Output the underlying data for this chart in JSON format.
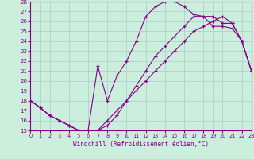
{
  "background_color": "#cceedd",
  "grid_color": "#aacccc",
  "line_color": "#880088",
  "xlabel": "Windchill (Refroidissement éolien,°C)",
  "xlim": [
    0,
    23
  ],
  "ylim": [
    15,
    28
  ],
  "xticks": [
    0,
    1,
    2,
    3,
    4,
    5,
    6,
    7,
    8,
    9,
    10,
    11,
    12,
    13,
    14,
    15,
    16,
    17,
    18,
    19,
    20,
    21,
    22,
    23
  ],
  "yticks": [
    15,
    16,
    17,
    18,
    19,
    20,
    21,
    22,
    23,
    24,
    25,
    26,
    27,
    28
  ],
  "curves": [
    {
      "x": [
        0,
        1,
        2,
        3,
        4,
        5,
        6,
        7,
        8,
        9,
        10,
        11,
        12,
        13,
        14,
        15,
        16,
        17,
        18,
        19,
        20,
        21,
        22,
        23
      ],
      "y": [
        18.0,
        17.3,
        16.5,
        16.0,
        15.5,
        15.0,
        15.0,
        21.5,
        18.0,
        20.5,
        22.0,
        24.0,
        26.5,
        27.5,
        28.0,
        28.0,
        27.5,
        26.7,
        26.5,
        26.5,
        25.8,
        25.8,
        24.0,
        21.0
      ]
    },
    {
      "x": [
        0,
        1,
        2,
        3,
        4,
        5,
        6,
        7,
        8,
        9,
        10,
        11,
        12,
        13,
        14,
        15,
        16,
        17,
        18,
        19,
        20,
        21,
        22,
        23
      ],
      "y": [
        18.0,
        17.3,
        16.5,
        16.0,
        15.5,
        15.0,
        15.0,
        15.0,
        15.5,
        16.5,
        18.0,
        19.5,
        21.0,
        22.5,
        23.5,
        24.5,
        25.5,
        26.5,
        26.5,
        25.5,
        25.5,
        25.3,
        24.0,
        21.0
      ]
    },
    {
      "x": [
        0,
        1,
        2,
        3,
        4,
        5,
        6,
        7,
        8,
        9,
        10,
        11,
        12,
        13,
        14,
        15,
        16,
        17,
        18,
        19,
        20,
        21,
        22,
        23
      ],
      "y": [
        18.0,
        17.3,
        16.5,
        16.0,
        15.5,
        15.0,
        15.0,
        15.0,
        16.0,
        17.0,
        18.0,
        19.0,
        20.0,
        21.0,
        22.0,
        23.0,
        24.0,
        25.0,
        25.5,
        26.0,
        26.5,
        25.8,
        24.0,
        21.0
      ]
    }
  ],
  "label_fontsize": 5.5,
  "tick_fontsize": 4.8
}
